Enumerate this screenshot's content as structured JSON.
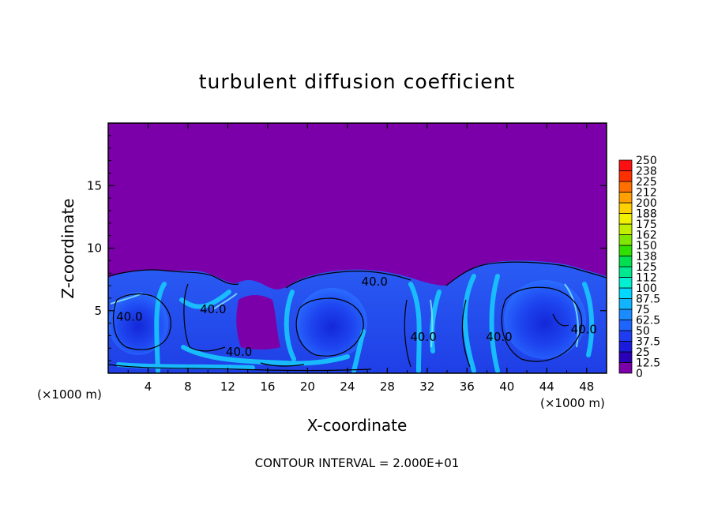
{
  "chart_data": {
    "type": "heatmap",
    "title": "turbulent diffusion coefficient",
    "xlabel": "X-coordinate",
    "ylabel": "Z-coordinate",
    "x_unit": "(×1000 m)",
    "xlim": [
      0,
      50
    ],
    "ylim": [
      0,
      20
    ],
    "x_ticks": [
      4,
      8,
      12,
      16,
      20,
      24,
      28,
      32,
      36,
      40,
      44,
      48
    ],
    "y_ticks": [
      5,
      10,
      15
    ],
    "colorbar_levels": [
      "0",
      "12.5",
      "25",
      "37.5",
      "50",
      "62.5",
      "75",
      "87.5",
      "100",
      "112",
      "125",
      "138",
      "150",
      "162",
      "175",
      "188",
      "200",
      "212",
      "225",
      "238",
      "250"
    ],
    "colorbar_colors": [
      "#7b00aa",
      "#2a00b8",
      "#1a1adc",
      "#1e3cf0",
      "#1e64ff",
      "#1a8cff",
      "#10b4ff",
      "#00d8ff",
      "#00f0d0",
      "#00e890",
      "#00e050",
      "#30e000",
      "#80e800",
      "#c0f000",
      "#f0f000",
      "#ffd000",
      "#ffa000",
      "#ff7000",
      "#ff3000",
      "#ff1010",
      "#ff6a6a"
    ],
    "contour_labels": [
      {
        "text": "40.0",
        "x": 0.8,
        "z": 4.2
      },
      {
        "text": "40.0",
        "x": 9.2,
        "z": 4.8
      },
      {
        "text": "40.0",
        "x": 11.8,
        "z": 1.4
      },
      {
        "text": "40.0",
        "x": 25.4,
        "z": 7.0
      },
      {
        "text": "40.0",
        "x": 30.3,
        "z": 2.6
      },
      {
        "text": "40.0",
        "x": 37.9,
        "z": 2.6
      },
      {
        "text": "40.0",
        "x": 46.4,
        "z": 3.2
      }
    ],
    "contour_interval_text": "CONTOUR INTERVAL = 2.000E+01"
  }
}
